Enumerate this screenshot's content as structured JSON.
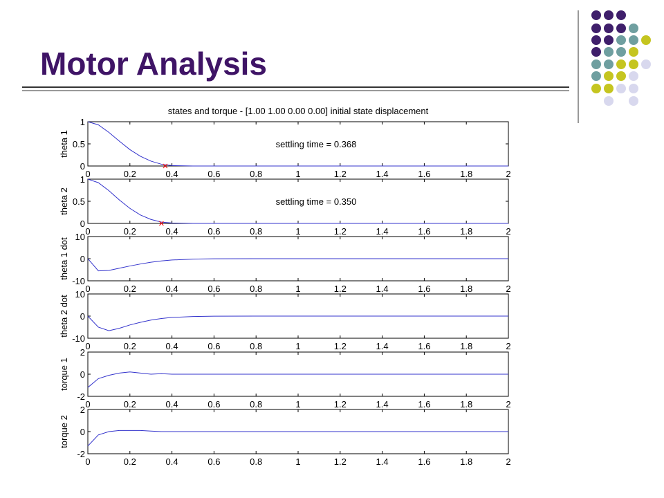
{
  "title": "Motor Analysis",
  "chart_data": [
    {
      "type": "line",
      "title": "states and torque - [1.00 1.00 0.00 0.00] initial state displacement",
      "ylabel": "theta 1",
      "x": [
        0,
        0.05,
        0.1,
        0.15,
        0.2,
        0.25,
        0.3,
        0.35,
        0.4,
        0.5,
        0.6,
        0.8,
        1,
        1.2,
        1.4,
        1.6,
        1.8,
        2
      ],
      "series": [
        {
          "color": "#3333cc",
          "values": [
            1,
            0.93,
            0.76,
            0.56,
            0.37,
            0.22,
            0.11,
            0.04,
            0.01,
            0,
            0,
            0,
            0,
            0,
            0,
            0,
            0,
            0
          ]
        }
      ],
      "annotation": "settling time = 0.368",
      "settling_marker": {
        "x": 0.368,
        "y": 0,
        "color": "#ff0000"
      },
      "xlim": [
        0,
        2
      ],
      "ylim": [
        0,
        1
      ],
      "xticks": [
        0,
        0.2,
        0.4,
        0.6,
        0.8,
        1,
        1.2,
        1.4,
        1.6,
        1.8,
        2
      ],
      "yticks": [
        0,
        0.5,
        1
      ]
    },
    {
      "type": "line",
      "ylabel": "theta 2",
      "x": [
        0,
        0.05,
        0.1,
        0.15,
        0.2,
        0.25,
        0.3,
        0.35,
        0.4,
        0.5,
        0.6,
        0.8,
        1,
        1.2,
        1.4,
        1.6,
        1.8,
        2
      ],
      "series": [
        {
          "color": "#3333cc",
          "values": [
            1,
            0.92,
            0.74,
            0.53,
            0.34,
            0.19,
            0.09,
            0.03,
            0.01,
            0,
            0,
            0,
            0,
            0,
            0,
            0,
            0,
            0
          ]
        }
      ],
      "annotation": "settling time = 0.350",
      "settling_marker": {
        "x": 0.35,
        "y": 0,
        "color": "#ff0000"
      },
      "xlim": [
        0,
        2
      ],
      "ylim": [
        0,
        1
      ],
      "xticks": [
        0,
        0.2,
        0.4,
        0.6,
        0.8,
        1,
        1.2,
        1.4,
        1.6,
        1.8,
        2
      ],
      "yticks": [
        0,
        0.5,
        1
      ]
    },
    {
      "type": "line",
      "ylabel": "theta 1 dot",
      "x": [
        0,
        0.05,
        0.1,
        0.15,
        0.2,
        0.25,
        0.3,
        0.35,
        0.4,
        0.5,
        0.6,
        0.8,
        1,
        1.2,
        1.4,
        1.6,
        1.8,
        2
      ],
      "series": [
        {
          "color": "#3333cc",
          "values": [
            0,
            -5.5,
            -5.3,
            -4.3,
            -3.3,
            -2.4,
            -1.6,
            -1,
            -0.6,
            -0.2,
            -0.05,
            0,
            0,
            0,
            0,
            0,
            0,
            0
          ]
        }
      ],
      "xlim": [
        0,
        2
      ],
      "ylim": [
        -10,
        10
      ],
      "xticks": [
        0,
        0.2,
        0.4,
        0.6,
        0.8,
        1,
        1.2,
        1.4,
        1.6,
        1.8,
        2
      ],
      "yticks": [
        -10,
        0,
        10
      ]
    },
    {
      "type": "line",
      "ylabel": "theta 2 dot",
      "x": [
        0,
        0.05,
        0.1,
        0.15,
        0.2,
        0.25,
        0.3,
        0.35,
        0.4,
        0.5,
        0.6,
        0.8,
        1,
        1.2,
        1.4,
        1.6,
        1.8,
        2
      ],
      "series": [
        {
          "color": "#3333cc",
          "values": [
            0,
            -5,
            -6.6,
            -5.5,
            -4,
            -2.8,
            -1.8,
            -1.1,
            -0.6,
            -0.2,
            -0.05,
            0,
            0,
            0,
            0,
            0,
            0,
            0
          ]
        }
      ],
      "xlim": [
        0,
        2
      ],
      "ylim": [
        -10,
        10
      ],
      "xticks": [
        0,
        0.2,
        0.4,
        0.6,
        0.8,
        1,
        1.2,
        1.4,
        1.6,
        1.8,
        2
      ],
      "yticks": [
        -10,
        0,
        10
      ]
    },
    {
      "type": "line",
      "ylabel": "torque 1",
      "x": [
        0,
        0.05,
        0.1,
        0.15,
        0.2,
        0.25,
        0.3,
        0.35,
        0.4,
        0.5,
        0.6,
        0.8,
        1,
        1.2,
        1.4,
        1.6,
        1.8,
        2
      ],
      "series": [
        {
          "color": "#3333cc",
          "values": [
            -1.2,
            -0.4,
            -0.1,
            0.1,
            0.2,
            0.1,
            0,
            0.05,
            0,
            0,
            0,
            0,
            0,
            0,
            0,
            0,
            0,
            0
          ]
        }
      ],
      "xlim": [
        0,
        2
      ],
      "ylim": [
        -2,
        2
      ],
      "xticks": [
        0,
        0.2,
        0.4,
        0.6,
        0.8,
        1,
        1.2,
        1.4,
        1.6,
        1.8,
        2
      ],
      "yticks": [
        -2,
        0,
        2
      ]
    },
    {
      "type": "line",
      "ylabel": "torque 2",
      "x": [
        0,
        0.05,
        0.1,
        0.15,
        0.2,
        0.25,
        0.3,
        0.35,
        0.4,
        0.5,
        0.6,
        0.8,
        1,
        1.2,
        1.4,
        1.6,
        1.8,
        2
      ],
      "series": [
        {
          "color": "#3333cc",
          "values": [
            -1.3,
            -0.3,
            0,
            0.1,
            0.1,
            0.1,
            0.05,
            0,
            0,
            0,
            0,
            0,
            0,
            0,
            0,
            0,
            0,
            0
          ]
        }
      ],
      "xlim": [
        0,
        2
      ],
      "ylim": [
        -2,
        2
      ],
      "xticks": [
        0,
        0.2,
        0.4,
        0.6,
        0.8,
        1,
        1.2,
        1.4,
        1.6,
        1.8,
        2
      ],
      "yticks": [
        -2,
        0,
        2
      ]
    }
  ]
}
